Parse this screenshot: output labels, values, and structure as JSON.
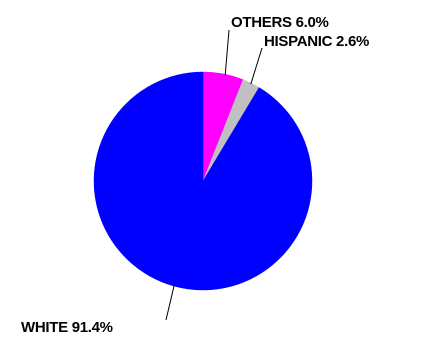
{
  "chart_data": {
    "type": "pie",
    "title": "",
    "start_angle_deg": 0,
    "direction": "clockwise",
    "legend": "none",
    "slices": [
      {
        "label": "OTHERS",
        "value": 6.0,
        "display": "OTHERS 6.0%",
        "color": "#ff00ff"
      },
      {
        "label": "HISPANIC",
        "value": 2.6,
        "display": "HISPANIC 2.6%",
        "color": "#c0c0c0"
      },
      {
        "label": "WHITE",
        "value": 91.4,
        "display": "WHITE 91.4%",
        "color": "#0000ff"
      }
    ]
  }
}
